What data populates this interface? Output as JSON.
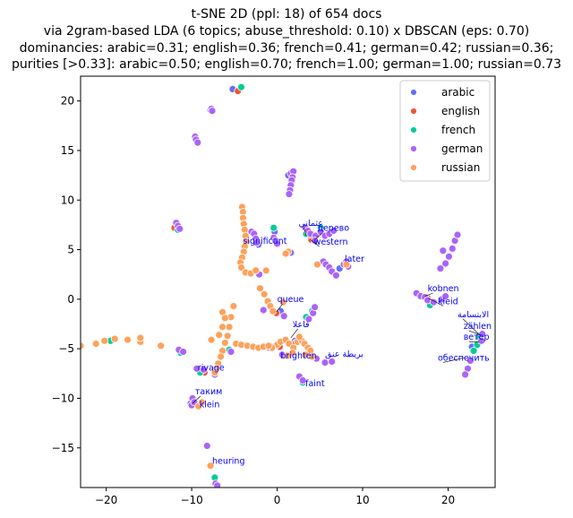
{
  "chart_data": {
    "type": "scatter",
    "title_lines": [
      "t-SNE 2D (ppl: 18) of 654 docs",
      "via 2gram-based LDA (6 topics; abuse_threshold: 0.10) x DBSCAN (eps: 0.70)",
      "dominancies: arabic=0.31; english=0.36; french=0.41; german=0.42; russian=0.36;",
      "purities [>0.33]: arabic=0.50; english=0.70; french=1.00; german=1.00; russian=0.73"
    ],
    "xlim": [
      -23,
      25.5
    ],
    "ylim": [
      -19,
      22.5
    ],
    "x_ticks": [
      -20,
      -10,
      0,
      10,
      20
    ],
    "y_ticks": [
      -15,
      -10,
      -5,
      0,
      5,
      10,
      15,
      20
    ],
    "x_tick_labels": [
      "−20",
      "−10",
      "0",
      "10",
      "20"
    ],
    "y_tick_labels": [
      "−15",
      "−10",
      "−5",
      "0",
      "5",
      "10",
      "15",
      "20"
    ],
    "legend_position": "top-right",
    "series": [
      {
        "name": "arabic",
        "color": "#636efa",
        "points": [
          [
            -2.2,
            5.5
          ],
          [
            1.6,
            4.7
          ],
          [
            1.3,
            12.5
          ],
          [
            -0.3,
            6.8
          ],
          [
            22.8,
            -4.8
          ],
          [
            7.3,
            3.1
          ],
          [
            2.1,
            -4.2
          ],
          [
            -10.1,
            -10.5
          ],
          [
            -11.8,
            7.4
          ],
          [
            0.4,
            -1.2
          ],
          [
            -5.2,
            21.2
          ],
          [
            -7.8,
            19.1
          ]
        ]
      },
      {
        "name": "english",
        "color": "#ef553b",
        "points": [
          [
            4.0,
            6.0
          ],
          [
            -0.1,
            -1.4
          ],
          [
            0.3,
            -4.8
          ],
          [
            2.2,
            -4.4
          ],
          [
            -9.8,
            -10.2
          ],
          [
            -8.5,
            -7.4
          ],
          [
            -12.0,
            7.2
          ],
          [
            17.6,
            0.1
          ],
          [
            3.7,
            6.5
          ],
          [
            -4.6,
            21.0
          ]
        ]
      },
      {
        "name": "french",
        "color": "#00cc96",
        "points": [
          [
            -9.4,
            15.9
          ],
          [
            -4.2,
            21.4
          ],
          [
            -11.6,
            7.0
          ],
          [
            -0.4,
            7.2
          ],
          [
            3.4,
            6.6
          ],
          [
            4.1,
            -1.2
          ],
          [
            3.4,
            -1.8
          ],
          [
            23.6,
            -3.8
          ],
          [
            23.4,
            -4.6
          ],
          [
            23.0,
            -5.2
          ],
          [
            -9.0,
            -7.4
          ],
          [
            -5.6,
            -5.1
          ],
          [
            -19.5,
            -4.2
          ],
          [
            -11.3,
            -5.4
          ],
          [
            -7.3,
            -18.0
          ],
          [
            3.0,
            -8.4
          ],
          [
            17.9,
            -0.6
          ],
          [
            5.1,
            7.2
          ]
        ]
      },
      {
        "name": "german",
        "color": "#ab63fa",
        "points": [
          [
            -9.6,
            16.4
          ],
          [
            -9.5,
            16.1
          ],
          [
            -9.3,
            15.8
          ],
          [
            -7.7,
            19.2
          ],
          [
            -7.6,
            19.0
          ],
          [
            1.6,
            12.7
          ],
          [
            1.9,
            12.9
          ],
          [
            1.8,
            12.3
          ],
          [
            1.7,
            12.0
          ],
          [
            1.6,
            11.5
          ],
          [
            1.5,
            11.0
          ],
          [
            1.4,
            10.6
          ],
          [
            -11.8,
            7.7
          ],
          [
            -11.6,
            7.4
          ],
          [
            -11.4,
            7.1
          ],
          [
            -3.0,
            6.8
          ],
          [
            -2.7,
            6.6
          ],
          [
            -2.5,
            6.1
          ],
          [
            -2.4,
            5.7
          ],
          [
            -0.4,
            6.2
          ],
          [
            -0.2,
            5.9
          ],
          [
            0.0,
            5.6
          ],
          [
            3.3,
            7.2
          ],
          [
            3.6,
            6.9
          ],
          [
            3.9,
            6.6
          ],
          [
            4.5,
            6.4
          ],
          [
            5.1,
            6.8
          ],
          [
            5.6,
            6.4
          ],
          [
            6.1,
            6.6
          ],
          [
            6.6,
            6.9
          ],
          [
            4.4,
            5.9
          ],
          [
            5.4,
            3.8
          ],
          [
            5.7,
            3.5
          ],
          [
            6.1,
            3.2
          ],
          [
            6.4,
            2.8
          ],
          [
            6.9,
            2.4
          ],
          [
            7.8,
            3.5
          ],
          [
            8.1,
            3.8
          ],
          [
            8.3,
            3.3
          ],
          [
            16.3,
            0.6
          ],
          [
            16.8,
            0.3
          ],
          [
            17.3,
            0.2
          ],
          [
            17.6,
            -0.1
          ],
          [
            18.3,
            -0.3
          ],
          [
            19.3,
            0.0
          ],
          [
            19.7,
            0.3
          ],
          [
            19.1,
            3.1
          ],
          [
            19.7,
            3.6
          ],
          [
            20.1,
            4.3
          ],
          [
            20.5,
            5.1
          ],
          [
            20.8,
            5.9
          ],
          [
            21.1,
            6.5
          ],
          [
            19.4,
            4.9
          ],
          [
            24.0,
            -3.5
          ],
          [
            23.9,
            -4.2
          ],
          [
            22.6,
            -6.2
          ],
          [
            22.3,
            -7.0
          ],
          [
            22.0,
            -7.6
          ],
          [
            -9.4,
            -7.0
          ],
          [
            -8.6,
            -7.1
          ],
          [
            -7.3,
            -7.6
          ],
          [
            -9.9,
            -10.0
          ],
          [
            -10.0,
            -10.7
          ],
          [
            -9.7,
            -10.4
          ],
          [
            -8.2,
            -14.8
          ],
          [
            -7.2,
            -18.6
          ],
          [
            -7.0,
            -18.8
          ],
          [
            4.2,
            -1.4
          ],
          [
            3.7,
            -2.0
          ],
          [
            4.4,
            -0.8
          ],
          [
            0.8,
            -1.7
          ],
          [
            -1.6,
            -1.1
          ],
          [
            -0.9,
            -4.9
          ],
          [
            0.6,
            -5.6
          ],
          [
            4.6,
            -6.0
          ],
          [
            5.6,
            -6.4
          ],
          [
            6.4,
            -6.3
          ],
          [
            2.6,
            -7.8
          ],
          [
            3.0,
            -8.2
          ],
          [
            -5.4,
            -5.3
          ],
          [
            -11.5,
            -5.1
          ],
          [
            -11.0,
            -5.3
          ],
          [
            -2.1,
            2.5
          ]
        ]
      },
      {
        "name": "russian",
        "color": "#ffa15a",
        "points": [
          [
            -4.1,
            9.3
          ],
          [
            -4.0,
            8.8
          ],
          [
            -4.0,
            8.2
          ],
          [
            -3.9,
            7.6
          ],
          [
            -3.8,
            7.0
          ],
          [
            -3.7,
            6.4
          ],
          [
            -3.6,
            5.8
          ],
          [
            -3.8,
            5.3
          ],
          [
            -3.9,
            4.8
          ],
          [
            -4.1,
            4.2
          ],
          [
            -4.3,
            3.7
          ],
          [
            -4.2,
            3.2
          ],
          [
            -3.7,
            2.7
          ],
          [
            -3.1,
            2.6
          ],
          [
            -2.5,
            2.9
          ],
          [
            -1.3,
            2.9
          ],
          [
            -2.0,
            1.1
          ],
          [
            -1.5,
            0.5
          ],
          [
            -1.1,
            -0.2
          ],
          [
            -0.8,
            -0.7
          ],
          [
            -0.5,
            -1.2
          ],
          [
            1.3,
            4.8
          ],
          [
            1.0,
            4.6
          ],
          [
            -5.1,
            -0.7
          ],
          [
            -5.4,
            -1.8
          ],
          [
            -5.6,
            -2.8
          ],
          [
            -5.8,
            -3.7
          ],
          [
            -6.1,
            -4.4
          ],
          [
            -6.4,
            -5.2
          ],
          [
            -6.6,
            -5.8
          ],
          [
            -6.9,
            -6.5
          ],
          [
            -7.1,
            -7.0
          ],
          [
            -7.3,
            -7.4
          ],
          [
            -6.4,
            -1.3
          ],
          [
            -6.1,
            -1.9
          ],
          [
            -6.4,
            -2.8
          ],
          [
            -6.8,
            -3.6
          ],
          [
            -7.7,
            -4.1
          ],
          [
            -4.8,
            -4.5
          ],
          [
            -4.2,
            -4.6
          ],
          [
            -3.5,
            -4.7
          ],
          [
            -2.8,
            -4.8
          ],
          [
            -2.2,
            -4.9
          ],
          [
            -1.6,
            -4.8
          ],
          [
            -0.8,
            -4.7
          ],
          [
            0.0,
            -4.6
          ],
          [
            0.4,
            -4.3
          ],
          [
            1.0,
            -4.1
          ],
          [
            1.4,
            -4.5
          ],
          [
            1.9,
            -4.9
          ],
          [
            2.4,
            -4.3
          ],
          [
            2.9,
            -4.2
          ],
          [
            3.2,
            -4.5
          ],
          [
            3.6,
            -4.9
          ],
          [
            3.9,
            -5.2
          ],
          [
            2.6,
            -3.8
          ],
          [
            3.3,
            -5.6
          ],
          [
            4.1,
            -5.8
          ],
          [
            1.8,
            -5.4
          ],
          [
            1.2,
            -5.7
          ],
          [
            -13.6,
            -4.7
          ],
          [
            -16.0,
            -4.3
          ],
          [
            -16.0,
            -3.9
          ],
          [
            -17.5,
            -4.1
          ],
          [
            -19.0,
            -4.0
          ],
          [
            -20.2,
            -4.2
          ],
          [
            -21.2,
            -4.5
          ],
          [
            -23.0,
            -4.7
          ],
          [
            -7.8,
            -16.8
          ],
          [
            -9.2,
            -10.8
          ],
          [
            -8.8,
            -10.4
          ],
          [
            0.7,
            -0.3
          ],
          [
            4.7,
            3.5
          ],
          [
            8.1,
            3.5
          ],
          [
            -0.6,
            -4.9
          ],
          [
            -1.0,
            -4.7
          ]
        ]
      }
    ],
    "annotations": [
      {
        "text": "дерево",
        "x": 4.7,
        "y": 6.9,
        "ax": 4.4,
        "ay": 6.0
      },
      {
        "text": "عثماني",
        "x": 2.5,
        "y": 7.4,
        "ax": 3.4,
        "ay": 6.4
      },
      {
        "text": "western",
        "x": 4.3,
        "y": 5.5,
        "ax": 3.9,
        "ay": 6.0
      },
      {
        "text": "significant",
        "x": -4.0,
        "y": 5.6
      },
      {
        "text": "later",
        "x": 7.9,
        "y": 3.8
      },
      {
        "text": "kobnen",
        "x": 17.6,
        "y": 0.8,
        "ax": 17.3,
        "ay": 0.3
      },
      {
        "text": "kleid",
        "x": 18.8,
        "y": -0.5,
        "ax": 17.7,
        "ay": 0.1
      },
      {
        "text": "queue",
        "x": 0.0,
        "y": -0.3,
        "ax": -0.1,
        "ay": -1.3
      },
      {
        "text": "الابتسامة",
        "x": 21.1,
        "y": -1.8,
        "ax": 23.8,
        "ay": -3.7
      },
      {
        "text": "zählen",
        "x": 21.8,
        "y": -3.0,
        "ax": 23.8,
        "ay": -3.6
      },
      {
        "text": "ветер",
        "x": 21.8,
        "y": -4.1,
        "ax": 23.6,
        "ay": -4.3
      },
      {
        "text": "فاعلا",
        "x": 1.8,
        "y": -2.8,
        "ax": 1.6,
        "ay": -3.9
      },
      {
        "text": "brighten",
        "x": 0.4,
        "y": -6.0
      },
      {
        "text": "بريطة عنق",
        "x": 5.6,
        "y": -5.8
      },
      {
        "text": "обеспечить",
        "x": 18.8,
        "y": -6.2,
        "ax": 21.9,
        "ay": -5.9
      },
      {
        "text": "faint",
        "x": 3.3,
        "y": -8.8
      },
      {
        "text": "rivage",
        "x": -9.3,
        "y": -7.2
      },
      {
        "text": "таким",
        "x": -9.6,
        "y": -9.6,
        "ax": -9.9,
        "ay": -10.5
      },
      {
        "text": "klein",
        "x": -9.1,
        "y": -10.9
      },
      {
        "text": "heuring",
        "x": -7.6,
        "y": -16.6
      }
    ]
  }
}
